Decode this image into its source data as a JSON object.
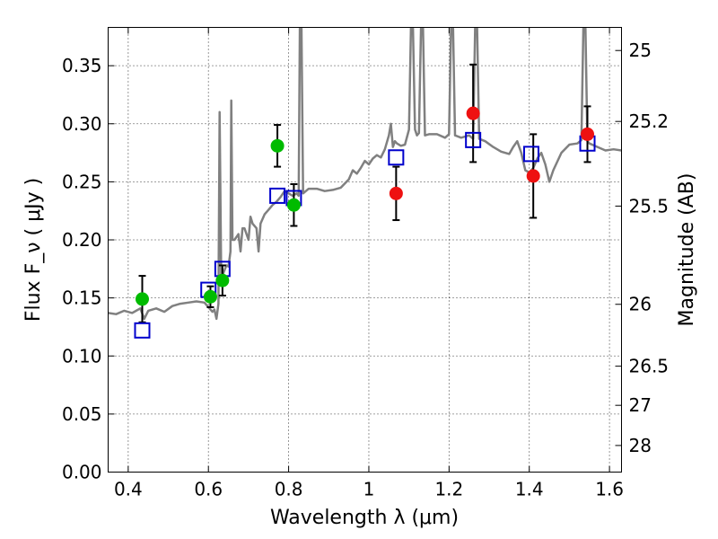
{
  "chart_data": {
    "type": "scatter",
    "xlabel": "Wavelength  λ (μm)",
    "ylabel": "Flux  F_ν  ( μJy )",
    "ylabel_right": "Magnitude (AB)",
    "xlim": [
      0.35,
      1.63
    ],
    "ylim": [
      0.0,
      0.383
    ],
    "grid": true,
    "x_ticks": [
      0.4,
      0.6,
      0.8,
      1.0,
      1.2,
      1.4,
      1.6
    ],
    "x_tick_labels": [
      "0.4",
      "0.6",
      "0.8",
      "1",
      "1.2",
      "1.4",
      "1.6"
    ],
    "y_ticks": [
      0.0,
      0.05,
      0.1,
      0.15,
      0.2,
      0.25,
      0.3,
      0.35
    ],
    "y_tick_labels": [
      "0.00",
      "0.05",
      "0.10",
      "0.15",
      "0.20",
      "0.25",
      "0.30",
      "0.35"
    ],
    "right_ticks": [
      {
        "label": "25",
        "flux": 0.3631
      },
      {
        "label": "25.2",
        "flux": 0.302
      },
      {
        "label": "25.5",
        "flux": 0.2291
      },
      {
        "label": "26",
        "flux": 0.1445
      },
      {
        "label": "26.5",
        "flux": 0.0912
      },
      {
        "label": "27",
        "flux": 0.0575
      },
      {
        "label": "28",
        "flux": 0.0229
      }
    ],
    "colors": {
      "spectrum": "#808080",
      "green_points": "#00bb00",
      "red_points": "#ee1111",
      "model_squares": "#0000cc",
      "error_bars": "#000000"
    },
    "series": [
      {
        "kind": "line",
        "points": [
          [
            0.35,
            0.137
          ],
          [
            0.37,
            0.136
          ],
          [
            0.39,
            0.139
          ],
          [
            0.41,
            0.137
          ],
          [
            0.43,
            0.141
          ],
          [
            0.44,
            0.132
          ],
          [
            0.45,
            0.139
          ],
          [
            0.47,
            0.141
          ],
          [
            0.49,
            0.138
          ],
          [
            0.51,
            0.143
          ],
          [
            0.53,
            0.145
          ],
          [
            0.55,
            0.146
          ],
          [
            0.57,
            0.147
          ],
          [
            0.59,
            0.146
          ],
          [
            0.6,
            0.142
          ],
          [
            0.61,
            0.138
          ],
          [
            0.615,
            0.14
          ],
          [
            0.62,
            0.132
          ],
          [
            0.625,
            0.145
          ],
          [
            0.628,
            0.31
          ],
          [
            0.632,
            0.165
          ],
          [
            0.638,
            0.172
          ],
          [
            0.645,
            0.178
          ],
          [
            0.65,
            0.177
          ],
          [
            0.655,
            0.19
          ],
          [
            0.657,
            0.32
          ],
          [
            0.66,
            0.2
          ],
          [
            0.665,
            0.2
          ],
          [
            0.675,
            0.205
          ],
          [
            0.68,
            0.19
          ],
          [
            0.685,
            0.21
          ],
          [
            0.69,
            0.21
          ],
          [
            0.7,
            0.2
          ],
          [
            0.705,
            0.22
          ],
          [
            0.71,
            0.214
          ],
          [
            0.72,
            0.21
          ],
          [
            0.725,
            0.19
          ],
          [
            0.73,
            0.214
          ],
          [
            0.74,
            0.222
          ],
          [
            0.75,
            0.226
          ],
          [
            0.76,
            0.23
          ],
          [
            0.77,
            0.233
          ],
          [
            0.78,
            0.237
          ],
          [
            0.79,
            0.242
          ],
          [
            0.8,
            0.24
          ],
          [
            0.81,
            0.238
          ],
          [
            0.82,
            0.24
          ],
          [
            0.825,
            0.238
          ],
          [
            0.828,
            0.383
          ],
          [
            0.832,
            0.383
          ],
          [
            0.836,
            0.24
          ],
          [
            0.85,
            0.244
          ],
          [
            0.87,
            0.244
          ],
          [
            0.89,
            0.242
          ],
          [
            0.91,
            0.243
          ],
          [
            0.93,
            0.245
          ],
          [
            0.95,
            0.252
          ],
          [
            0.96,
            0.26
          ],
          [
            0.97,
            0.257
          ],
          [
            0.98,
            0.262
          ],
          [
            0.99,
            0.268
          ],
          [
            1.0,
            0.265
          ],
          [
            1.01,
            0.27
          ],
          [
            1.02,
            0.273
          ],
          [
            1.03,
            0.271
          ],
          [
            1.04,
            0.278
          ],
          [
            1.05,
            0.29
          ],
          [
            1.055,
            0.3
          ],
          [
            1.06,
            0.28
          ],
          [
            1.065,
            0.285
          ],
          [
            1.07,
            0.283
          ],
          [
            1.08,
            0.281
          ],
          [
            1.09,
            0.282
          ],
          [
            1.1,
            0.295
          ],
          [
            1.105,
            0.383
          ],
          [
            1.11,
            0.383
          ],
          [
            1.115,
            0.295
          ],
          [
            1.12,
            0.29
          ],
          [
            1.125,
            0.292
          ],
          [
            1.13,
            0.383
          ],
          [
            1.135,
            0.383
          ],
          [
            1.14,
            0.29
          ],
          [
            1.15,
            0.291
          ],
          [
            1.17,
            0.291
          ],
          [
            1.19,
            0.288
          ],
          [
            1.2,
            0.291
          ],
          [
            1.205,
            0.383
          ],
          [
            1.21,
            0.383
          ],
          [
            1.215,
            0.29
          ],
          [
            1.23,
            0.288
          ],
          [
            1.25,
            0.29
          ],
          [
            1.26,
            0.287
          ],
          [
            1.265,
            0.383
          ],
          [
            1.27,
            0.383
          ],
          [
            1.275,
            0.287
          ],
          [
            1.29,
            0.285
          ],
          [
            1.31,
            0.28
          ],
          [
            1.33,
            0.276
          ],
          [
            1.35,
            0.274
          ],
          [
            1.36,
            0.28
          ],
          [
            1.37,
            0.285
          ],
          [
            1.38,
            0.275
          ],
          [
            1.39,
            0.26
          ],
          [
            1.4,
            0.258
          ],
          [
            1.41,
            0.262
          ],
          [
            1.42,
            0.27
          ],
          [
            1.43,
            0.275
          ],
          [
            1.44,
            0.265
          ],
          [
            1.45,
            0.25
          ],
          [
            1.46,
            0.26
          ],
          [
            1.48,
            0.275
          ],
          [
            1.5,
            0.282
          ],
          [
            1.52,
            0.283
          ],
          [
            1.53,
            0.286
          ],
          [
            1.535,
            0.383
          ],
          [
            1.54,
            0.383
          ],
          [
            1.545,
            0.285
          ],
          [
            1.55,
            0.283
          ],
          [
            1.57,
            0.28
          ],
          [
            1.59,
            0.277
          ],
          [
            1.61,
            0.278
          ],
          [
            1.63,
            0.277
          ]
        ]
      },
      {
        "kind": "points",
        "x": [
          0.435,
          0.605,
          0.635,
          0.772,
          0.813
        ],
        "y": [
          0.149,
          0.151,
          0.165,
          0.281,
          0.23
        ],
        "yerr": [
          0.02,
          0.009,
          0.013,
          0.018,
          0.018
        ]
      },
      {
        "kind": "points",
        "x": [
          1.068,
          1.26,
          1.41,
          1.545
        ],
        "y": [
          0.24,
          0.309,
          0.255,
          0.291
        ],
        "yerr": [
          0.023,
          0.042,
          0.036,
          0.024
        ]
      },
      {
        "kind": "markers",
        "x": [
          0.435,
          0.6,
          0.635,
          0.772,
          0.813,
          1.068,
          1.26,
          1.405,
          1.545
        ],
        "y": [
          0.122,
          0.157,
          0.175,
          0.238,
          0.236,
          0.271,
          0.286,
          0.274,
          0.283
        ]
      }
    ]
  }
}
